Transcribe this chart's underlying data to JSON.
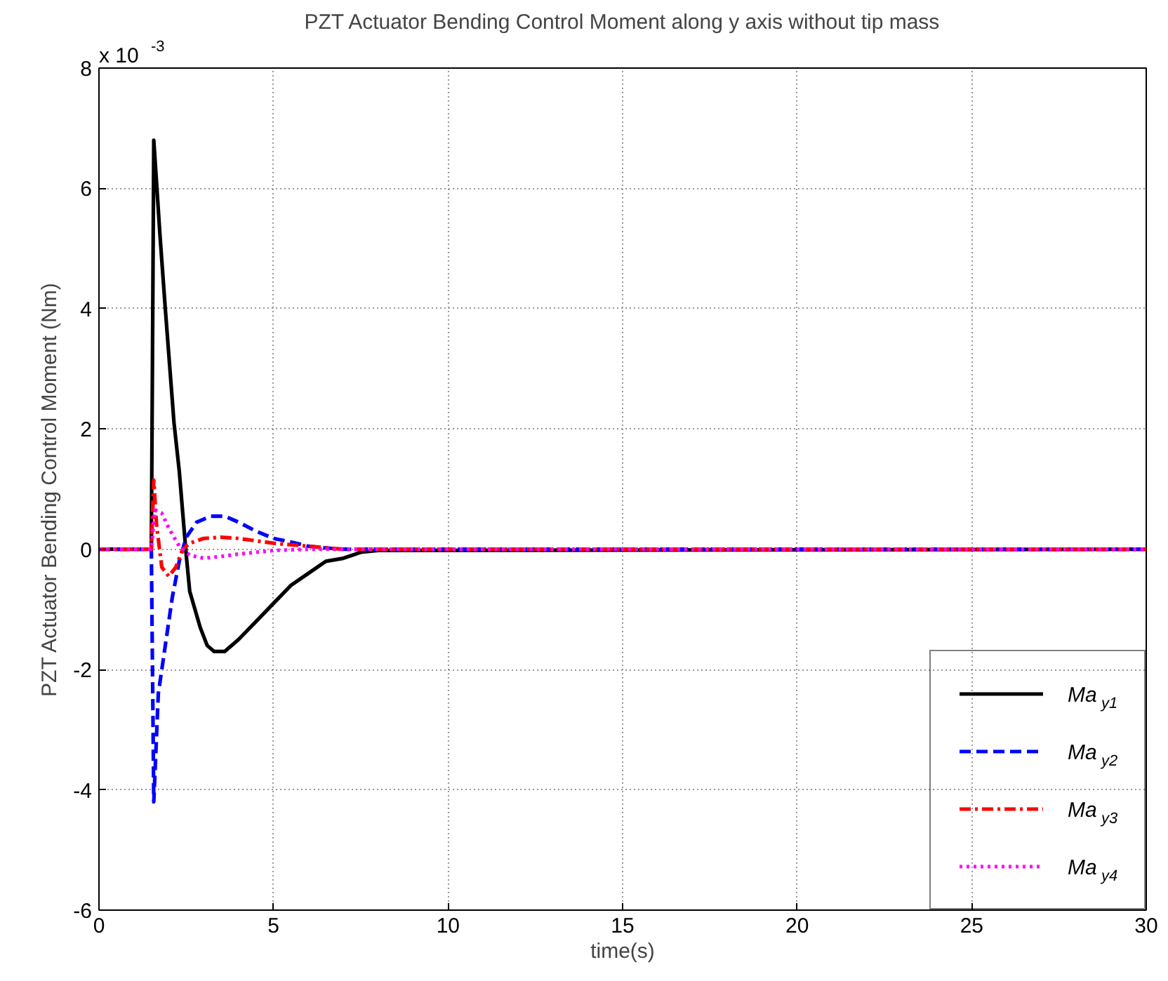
{
  "chart_data": {
    "type": "line",
    "title": "PZT Actuator Bending Control Moment along y axis without tip mass",
    "xlabel": "time(s)",
    "ylabel": "PZT Actuator Bending Control Moment (Nm)",
    "annotations": [
      "x 10$^{-3}$"
    ],
    "xlim": [
      0,
      30
    ],
    "xticks": [
      0,
      5,
      10,
      15,
      20,
      25,
      30
    ],
    "ylim": [
      -6,
      8
    ],
    "yticks": [
      -6,
      -4,
      -2,
      0,
      2,
      4,
      6,
      8
    ],
    "grid": true,
    "legend": "bottom right",
    "series": [
      {
        "name": "Ma$_{y1}$",
        "color": "#000000",
        "line_style": "solid",
        "x": [
          0,
          1.5,
          1.57,
          1.75,
          1.9,
          2.15,
          2.3,
          2.5,
          2.6,
          2.9,
          3.1,
          3.3,
          3.6,
          4.0,
          4.5,
          5,
          5.5,
          6,
          6.5,
          7,
          7.5,
          8,
          30
        ],
        "values": [
          0,
          0,
          6.8,
          5.2,
          4.0,
          2.1,
          1.3,
          -0.1,
          -0.7,
          -1.3,
          -1.6,
          -1.7,
          -1.7,
          -1.5,
          -1.2,
          -0.9,
          -0.6,
          -0.4,
          -0.2,
          -0.15,
          -0.05,
          -0.02,
          0
        ]
      },
      {
        "name": "Ma$_{y2}$",
        "color": "#0000ff",
        "line_style": "dashed",
        "x": [
          0,
          1.5,
          1.57,
          1.7,
          1.9,
          2.1,
          2.3,
          2.5,
          2.8,
          3.2,
          3.6,
          4,
          4.5,
          5,
          5.5,
          6,
          6.5,
          7,
          30
        ],
        "values": [
          0,
          0,
          -4.2,
          -2.4,
          -1.6,
          -0.8,
          -0.2,
          0.2,
          0.45,
          0.55,
          0.55,
          0.45,
          0.3,
          0.18,
          0.12,
          0.05,
          0.02,
          0,
          0
        ]
      },
      {
        "name": "Ma$_{y3}$",
        "color": "#ff0000",
        "line_style": "dashdot",
        "x": [
          0,
          1.5,
          1.57,
          1.65,
          1.8,
          2.0,
          2.2,
          2.4,
          2.6,
          3,
          3.5,
          4,
          5,
          6,
          7,
          30
        ],
        "values": [
          0,
          0,
          1.15,
          0.4,
          -0.3,
          -0.45,
          -0.3,
          0,
          0.1,
          0.18,
          0.2,
          0.18,
          0.1,
          0.05,
          0,
          0
        ]
      },
      {
        "name": "Ma$_{y4}$",
        "color": "#ff00ff",
        "line_style": "dotted",
        "x": [
          0,
          1.5,
          1.6,
          1.8,
          2.0,
          2.3,
          2.6,
          3,
          3.5,
          4,
          4.5,
          5,
          6,
          30
        ],
        "values": [
          0,
          0,
          0.65,
          0.6,
          0.35,
          0.05,
          -0.1,
          -0.15,
          -0.12,
          -0.08,
          -0.05,
          -0.02,
          0,
          0
        ]
      }
    ]
  }
}
